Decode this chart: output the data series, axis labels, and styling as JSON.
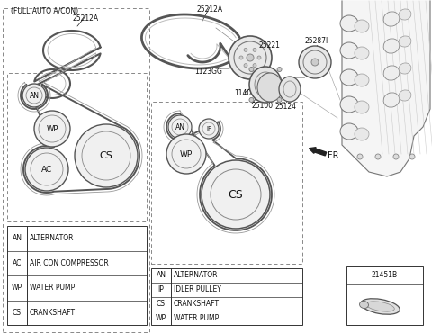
{
  "bg_color": "#ffffff",
  "lc": "#444444",
  "tc": "#111111",
  "left_legend": [
    [
      "AN",
      "ALTERNATOR"
    ],
    [
      "AC",
      "AIR CON COMPRESSOR"
    ],
    [
      "WP",
      "WATER PUMP"
    ],
    [
      "CS",
      "CRANKSHAFT"
    ]
  ],
  "right_legend": [
    [
      "AN",
      "ALTERNATOR"
    ],
    [
      "IP",
      "IDLER PULLEY"
    ],
    [
      "CS",
      "CRANKSHAFT"
    ],
    [
      "WP",
      "WATER PUMP"
    ]
  ]
}
